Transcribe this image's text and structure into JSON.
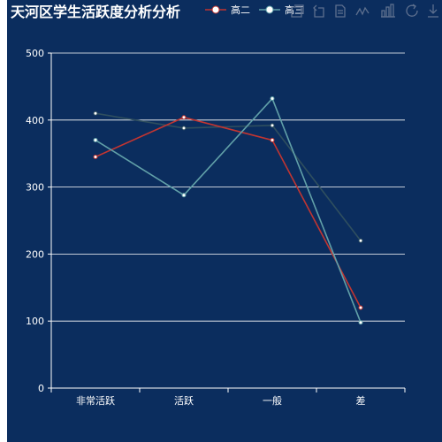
{
  "title": "天河区学生活跃度分析分析",
  "colors": {
    "background": "#0b2d5e",
    "grid": "#ffffff",
    "axis": "#ffffff",
    "text": "#ffffff",
    "toolbox": "#5d6f8e"
  },
  "toolbox": {
    "icons": [
      "save-as-image-icon",
      "restore-icon",
      "data-view-icon",
      "line-chart-icon",
      "bar-chart-icon",
      "refresh-icon",
      "download-icon"
    ]
  },
  "chart_data": {
    "type": "line",
    "title": "天河区学生活跃度分析分析",
    "categories": [
      "非常活跃",
      "活跃",
      "一般",
      "差"
    ],
    "ylim": [
      0,
      500
    ],
    "yticks": [
      0,
      100,
      200,
      300,
      400,
      500
    ],
    "grid": true,
    "legend": "top",
    "series": [
      {
        "name": "",
        "color": "#2f4f5f",
        "values": [
          410,
          388,
          392,
          220
        ]
      },
      {
        "name": "高二",
        "color": "#c23531",
        "values": [
          345,
          404,
          370,
          120
        ]
      },
      {
        "name": "高三",
        "color": "#61a0a8",
        "values": [
          370,
          288,
          432,
          98
        ]
      }
    ]
  }
}
